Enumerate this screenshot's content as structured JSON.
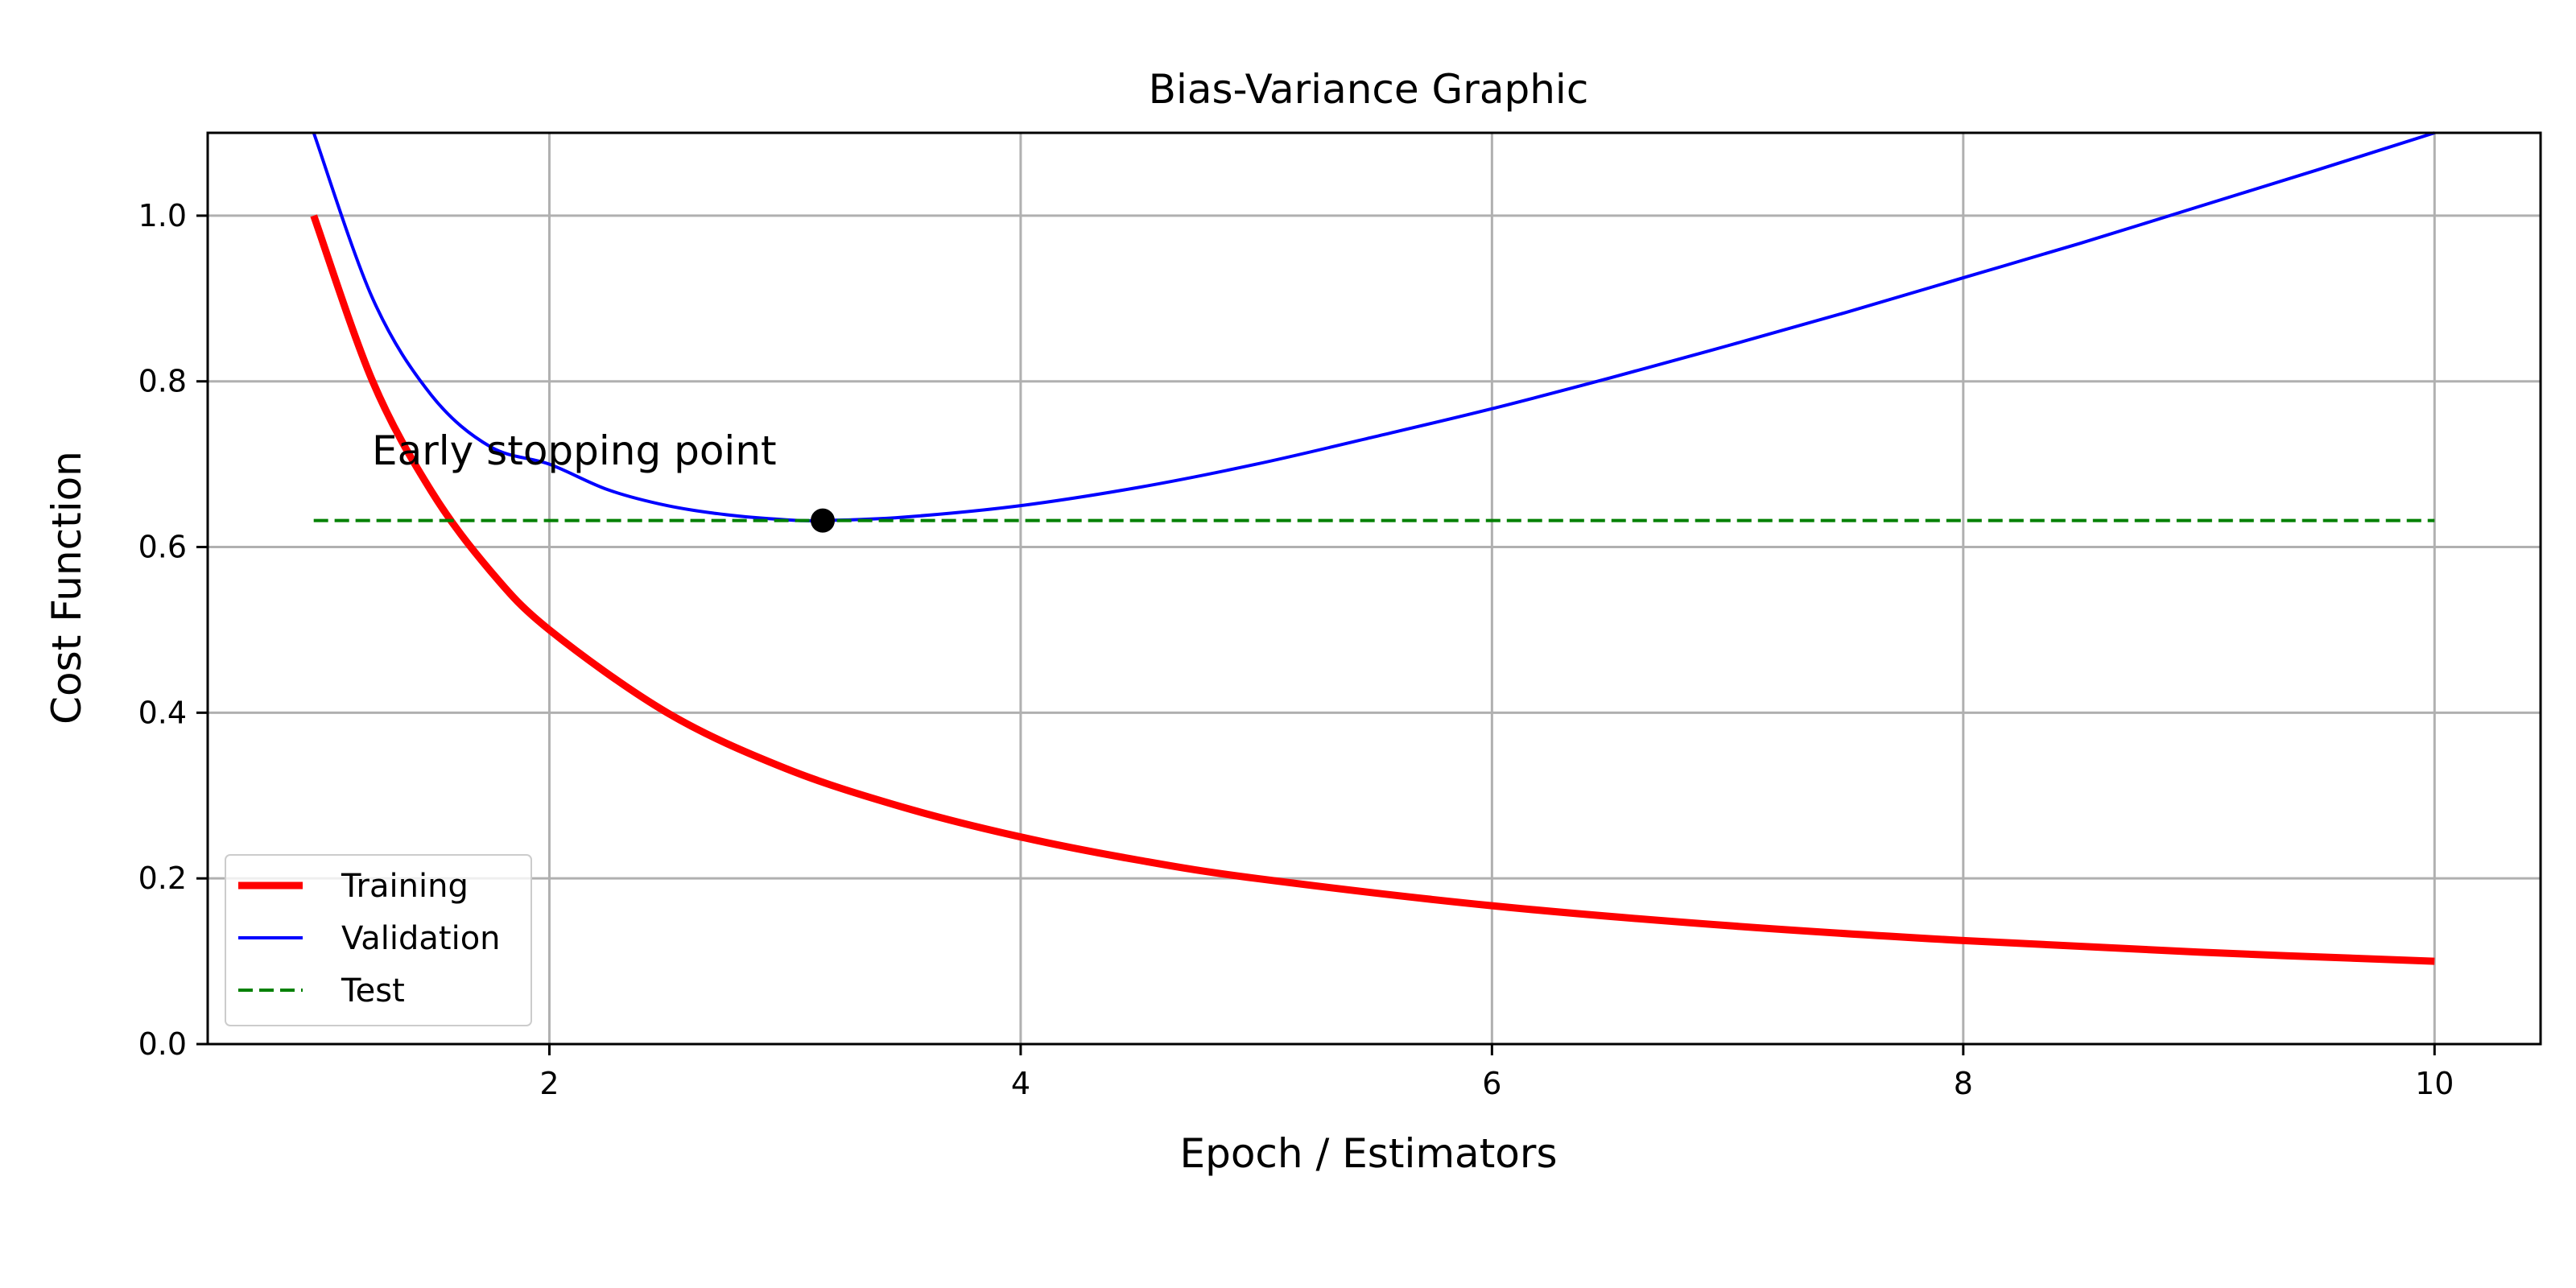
{
  "chart_data": {
    "type": "line",
    "title": "Bias-Variance Graphic",
    "xlabel": "Epoch / Estimators",
    "ylabel": "Cost Function",
    "xlim": [
      0.55,
      10.45
    ],
    "ylim": [
      0.0,
      1.1
    ],
    "xticks": [
      2,
      4,
      6,
      8,
      10
    ],
    "yticks": [
      0.0,
      0.2,
      0.4,
      0.6,
      0.8,
      1.0
    ],
    "xtick_labels": [
      "2",
      "4",
      "6",
      "8",
      "10"
    ],
    "ytick_labels": [
      "0.0",
      "0.2",
      "0.4",
      "0.6",
      "0.8",
      "1.0"
    ],
    "grid": true,
    "legend_position": "lower-left",
    "series": [
      {
        "name": "Training",
        "color": "#ff0000",
        "style": "solid",
        "x": [
          1.0,
          1.25,
          1.5,
          1.75,
          2.0,
          2.5,
          3.0,
          3.5,
          4.0,
          4.5,
          5.0,
          6.0,
          7.0,
          8.0,
          9.0,
          10.0
        ],
        "values": [
          1.0,
          0.8,
          0.667,
          0.571,
          0.5,
          0.4,
          0.333,
          0.286,
          0.25,
          0.222,
          0.2,
          0.167,
          0.143,
          0.125,
          0.111,
          0.1
        ]
      },
      {
        "name": "Validation",
        "color": "#0000ff",
        "style": "solid",
        "x": [
          1.0,
          1.25,
          1.5,
          1.75,
          2.0,
          2.25,
          2.5,
          2.75,
          3.0,
          3.16,
          3.5,
          4.0,
          4.5,
          5.0,
          5.5,
          6.0,
          6.5,
          7.0,
          7.5,
          8.0,
          8.5,
          9.0,
          9.5,
          10.0
        ],
        "values": [
          1.1,
          0.9,
          0.783,
          0.721,
          0.7,
          0.669,
          0.65,
          0.639,
          0.633,
          0.632,
          0.636,
          0.65,
          0.672,
          0.7,
          0.733,
          0.767,
          0.804,
          0.843,
          0.883,
          0.925,
          0.967,
          1.011,
          1.055,
          1.1
        ]
      },
      {
        "name": "Test",
        "color": "#008000",
        "style": "dashed",
        "x": [
          1.0,
          10.0
        ],
        "values": [
          0.632,
          0.632
        ]
      }
    ],
    "annotations": [
      {
        "text": "Early stopping point",
        "x": 3.16,
        "y": 0.632
      }
    ]
  }
}
